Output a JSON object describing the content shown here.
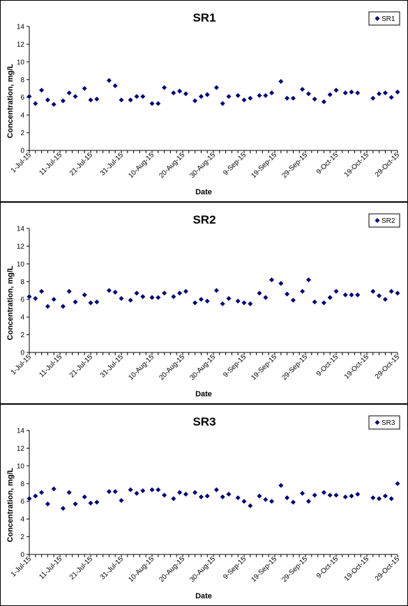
{
  "marker_color": "#00007f",
  "chart_data": [
    {
      "type": "scatter",
      "title": "SR1",
      "xlabel": "Date",
      "ylabel": "Concentration, mg/L",
      "ylim": [
        0,
        14
      ],
      "yticks": [
        "0",
        "2",
        "4",
        "6",
        "8",
        "10",
        "12",
        "14"
      ],
      "xticks": [
        "1-Jul-15",
        "11-Jul-15",
        "21-Jul-15",
        "31-Jul-15",
        "10-Aug-15",
        "20-Aug-15",
        "30-Aug-15",
        "9-Sep-15",
        "19-Sep-15",
        "29-Sep-15",
        "9-Oct-15",
        "19-Oct-15",
        "29-Oct-15"
      ],
      "xlim": [
        "2015-07-01",
        "2015-10-29"
      ],
      "grid": false,
      "legend_position": "top-right",
      "series": [
        {
          "name": "SR1",
          "color": "#00007f",
          "marker": "diamond",
          "points": [
            {
              "x": "2015-07-01",
              "y": 6.1
            },
            {
              "x": "2015-07-03",
              "y": 5.3
            },
            {
              "x": "2015-07-05",
              "y": 6.8
            },
            {
              "x": "2015-07-07",
              "y": 5.7
            },
            {
              "x": "2015-07-09",
              "y": 5.2
            },
            {
              "x": "2015-07-12",
              "y": 5.6
            },
            {
              "x": "2015-07-14",
              "y": 6.5
            },
            {
              "x": "2015-07-16",
              "y": 6.1
            },
            {
              "x": "2015-07-19",
              "y": 7.0
            },
            {
              "x": "2015-07-21",
              "y": 5.7
            },
            {
              "x": "2015-07-23",
              "y": 5.8
            },
            {
              "x": "2015-07-27",
              "y": 7.9
            },
            {
              "x": "2015-07-29",
              "y": 7.3
            },
            {
              "x": "2015-07-31",
              "y": 5.7
            },
            {
              "x": "2015-08-03",
              "y": 5.7
            },
            {
              "x": "2015-08-05",
              "y": 6.1
            },
            {
              "x": "2015-08-07",
              "y": 6.1
            },
            {
              "x": "2015-08-10",
              "y": 5.3
            },
            {
              "x": "2015-08-12",
              "y": 5.3
            },
            {
              "x": "2015-08-14",
              "y": 7.1
            },
            {
              "x": "2015-08-17",
              "y": 6.5
            },
            {
              "x": "2015-08-19",
              "y": 6.7
            },
            {
              "x": "2015-08-21",
              "y": 6.4
            },
            {
              "x": "2015-08-24",
              "y": 5.6
            },
            {
              "x": "2015-08-26",
              "y": 6.1
            },
            {
              "x": "2015-08-28",
              "y": 6.3
            },
            {
              "x": "2015-08-31",
              "y": 7.1
            },
            {
              "x": "2015-09-02",
              "y": 5.3
            },
            {
              "x": "2015-09-04",
              "y": 6.1
            },
            {
              "x": "2015-09-07",
              "y": 6.2
            },
            {
              "x": "2015-09-09",
              "y": 5.7
            },
            {
              "x": "2015-09-11",
              "y": 5.9
            },
            {
              "x": "2015-09-14",
              "y": 6.2
            },
            {
              "x": "2015-09-16",
              "y": 6.2
            },
            {
              "x": "2015-09-18",
              "y": 6.5
            },
            {
              "x": "2015-09-21",
              "y": 7.8
            },
            {
              "x": "2015-09-23",
              "y": 5.9
            },
            {
              "x": "2015-09-25",
              "y": 5.9
            },
            {
              "x": "2015-09-28",
              "y": 6.9
            },
            {
              "x": "2015-09-30",
              "y": 6.4
            },
            {
              "x": "2015-10-02",
              "y": 5.8
            },
            {
              "x": "2015-10-05",
              "y": 5.5
            },
            {
              "x": "2015-10-07",
              "y": 6.3
            },
            {
              "x": "2015-10-09",
              "y": 6.8
            },
            {
              "x": "2015-10-12",
              "y": 6.5
            },
            {
              "x": "2015-10-14",
              "y": 6.6
            },
            {
              "x": "2015-10-16",
              "y": 6.5
            },
            {
              "x": "2015-10-21",
              "y": 5.9
            },
            {
              "x": "2015-10-23",
              "y": 6.4
            },
            {
              "x": "2015-10-25",
              "y": 6.5
            },
            {
              "x": "2015-10-27",
              "y": 6.0
            },
            {
              "x": "2015-10-29",
              "y": 6.6
            }
          ]
        }
      ]
    },
    {
      "type": "scatter",
      "title": "SR2",
      "xlabel": "Date",
      "ylabel": "Concentration, mg/L",
      "ylim": [
        0,
        14
      ],
      "yticks": [
        "0",
        "2",
        "4",
        "6",
        "8",
        "10",
        "12",
        "14"
      ],
      "xticks": [
        "1-Jul-15",
        "11-Jul-15",
        "21-Jul-15",
        "31-Jul-15",
        "10-Aug-15",
        "20-Aug-15",
        "30-Aug-15",
        "9-Sep-15",
        "19-Sep-15",
        "29-Sep-15",
        "9-Oct-15",
        "19-Oct-15",
        "29-Oct-15"
      ],
      "xlim": [
        "2015-07-01",
        "2015-10-29"
      ],
      "grid": false,
      "legend_position": "top-right",
      "series": [
        {
          "name": "SR2",
          "color": "#00007f",
          "marker": "diamond",
          "points": [
            {
              "x": "2015-07-01",
              "y": 6.3
            },
            {
              "x": "2015-07-03",
              "y": 6.1
            },
            {
              "x": "2015-07-05",
              "y": 6.9
            },
            {
              "x": "2015-07-07",
              "y": 5.2
            },
            {
              "x": "2015-07-09",
              "y": 6.0
            },
            {
              "x": "2015-07-12",
              "y": 5.2
            },
            {
              "x": "2015-07-14",
              "y": 6.9
            },
            {
              "x": "2015-07-16",
              "y": 5.7
            },
            {
              "x": "2015-07-19",
              "y": 6.5
            },
            {
              "x": "2015-07-21",
              "y": 5.6
            },
            {
              "x": "2015-07-23",
              "y": 5.7
            },
            {
              "x": "2015-07-27",
              "y": 7.0
            },
            {
              "x": "2015-07-29",
              "y": 6.8
            },
            {
              "x": "2015-07-31",
              "y": 6.1
            },
            {
              "x": "2015-08-03",
              "y": 5.9
            },
            {
              "x": "2015-08-05",
              "y": 6.7
            },
            {
              "x": "2015-08-07",
              "y": 6.3
            },
            {
              "x": "2015-08-10",
              "y": 6.2
            },
            {
              "x": "2015-08-12",
              "y": 6.2
            },
            {
              "x": "2015-08-14",
              "y": 6.7
            },
            {
              "x": "2015-08-17",
              "y": 6.3
            },
            {
              "x": "2015-08-19",
              "y": 6.7
            },
            {
              "x": "2015-08-21",
              "y": 6.9
            },
            {
              "x": "2015-08-24",
              "y": 5.6
            },
            {
              "x": "2015-08-26",
              "y": 6.0
            },
            {
              "x": "2015-08-28",
              "y": 5.8
            },
            {
              "x": "2015-08-31",
              "y": 7.0
            },
            {
              "x": "2015-09-02",
              "y": 5.5
            },
            {
              "x": "2015-09-04",
              "y": 6.1
            },
            {
              "x": "2015-09-07",
              "y": 5.8
            },
            {
              "x": "2015-09-09",
              "y": 5.6
            },
            {
              "x": "2015-09-11",
              "y": 5.5
            },
            {
              "x": "2015-09-14",
              "y": 6.7
            },
            {
              "x": "2015-09-16",
              "y": 6.2
            },
            {
              "x": "2015-09-18",
              "y": 8.2
            },
            {
              "x": "2015-09-21",
              "y": 7.8
            },
            {
              "x": "2015-09-23",
              "y": 6.6
            },
            {
              "x": "2015-09-25",
              "y": 5.9
            },
            {
              "x": "2015-09-28",
              "y": 6.9
            },
            {
              "x": "2015-09-30",
              "y": 8.2
            },
            {
              "x": "2015-10-02",
              "y": 5.7
            },
            {
              "x": "2015-10-05",
              "y": 5.6
            },
            {
              "x": "2015-10-07",
              "y": 6.2
            },
            {
              "x": "2015-10-09",
              "y": 6.9
            },
            {
              "x": "2015-10-12",
              "y": 6.5
            },
            {
              "x": "2015-10-14",
              "y": 6.5
            },
            {
              "x": "2015-10-16",
              "y": 6.5
            },
            {
              "x": "2015-10-21",
              "y": 6.9
            },
            {
              "x": "2015-10-23",
              "y": 6.4
            },
            {
              "x": "2015-10-25",
              "y": 6.0
            },
            {
              "x": "2015-10-27",
              "y": 6.9
            },
            {
              "x": "2015-10-29",
              "y": 6.7
            }
          ]
        }
      ]
    },
    {
      "type": "scatter",
      "title": "SR3",
      "xlabel": "Date",
      "ylabel": "Concentration, mg/L",
      "ylim": [
        0,
        14
      ],
      "yticks": [
        "0",
        "2",
        "4",
        "6",
        "8",
        "10",
        "12",
        "14"
      ],
      "xticks": [
        "1-Jul-15",
        "11-Jul-15",
        "21-Jul-15",
        "31-Jul-15",
        "10-Aug-15",
        "20-Aug-15",
        "30-Aug-15",
        "9-Sep-15",
        "19-Sep-15",
        "29-Sep-15",
        "9-Oct-15",
        "19-Oct-15",
        "29-Oct-15"
      ],
      "xlim": [
        "2015-07-01",
        "2015-10-29"
      ],
      "grid": false,
      "legend_position": "top-right",
      "series": [
        {
          "name": "SR3",
          "color": "#00007f",
          "marker": "diamond",
          "points": [
            {
              "x": "2015-07-01",
              "y": 6.3
            },
            {
              "x": "2015-07-03",
              "y": 6.6
            },
            {
              "x": "2015-07-05",
              "y": 7.0
            },
            {
              "x": "2015-07-07",
              "y": 5.7
            },
            {
              "x": "2015-07-09",
              "y": 7.4
            },
            {
              "x": "2015-07-12",
              "y": 5.2
            },
            {
              "x": "2015-07-14",
              "y": 7.0
            },
            {
              "x": "2015-07-16",
              "y": 5.7
            },
            {
              "x": "2015-07-19",
              "y": 6.5
            },
            {
              "x": "2015-07-21",
              "y": 5.8
            },
            {
              "x": "2015-07-23",
              "y": 5.9
            },
            {
              "x": "2015-07-27",
              "y": 7.1
            },
            {
              "x": "2015-07-29",
              "y": 7.1
            },
            {
              "x": "2015-07-31",
              "y": 6.1
            },
            {
              "x": "2015-08-03",
              "y": 7.3
            },
            {
              "x": "2015-08-05",
              "y": 6.9
            },
            {
              "x": "2015-08-07",
              "y": 7.2
            },
            {
              "x": "2015-08-10",
              "y": 7.3
            },
            {
              "x": "2015-08-12",
              "y": 7.3
            },
            {
              "x": "2015-08-14",
              "y": 6.7
            },
            {
              "x": "2015-08-17",
              "y": 6.3
            },
            {
              "x": "2015-08-19",
              "y": 7.0
            },
            {
              "x": "2015-08-21",
              "y": 6.8
            },
            {
              "x": "2015-08-24",
              "y": 7.0
            },
            {
              "x": "2015-08-26",
              "y": 6.5
            },
            {
              "x": "2015-08-28",
              "y": 6.6
            },
            {
              "x": "2015-08-31",
              "y": 7.3
            },
            {
              "x": "2015-09-02",
              "y": 6.5
            },
            {
              "x": "2015-09-04",
              "y": 6.8
            },
            {
              "x": "2015-09-07",
              "y": 6.4
            },
            {
              "x": "2015-09-09",
              "y": 6.0
            },
            {
              "x": "2015-09-11",
              "y": 5.5
            },
            {
              "x": "2015-09-14",
              "y": 6.6
            },
            {
              "x": "2015-09-16",
              "y": 6.2
            },
            {
              "x": "2015-09-18",
              "y": 6.0
            },
            {
              "x": "2015-09-21",
              "y": 7.8
            },
            {
              "x": "2015-09-23",
              "y": 6.4
            },
            {
              "x": "2015-09-25",
              "y": 5.9
            },
            {
              "x": "2015-09-28",
              "y": 6.9
            },
            {
              "x": "2015-09-30",
              "y": 6.0
            },
            {
              "x": "2015-10-02",
              "y": 6.7
            },
            {
              "x": "2015-10-05",
              "y": 7.0
            },
            {
              "x": "2015-10-07",
              "y": 6.7
            },
            {
              "x": "2015-10-09",
              "y": 6.7
            },
            {
              "x": "2015-10-12",
              "y": 6.5
            },
            {
              "x": "2015-10-14",
              "y": 6.6
            },
            {
              "x": "2015-10-16",
              "y": 6.8
            },
            {
              "x": "2015-10-21",
              "y": 6.4
            },
            {
              "x": "2015-10-23",
              "y": 6.3
            },
            {
              "x": "2015-10-25",
              "y": 6.6
            },
            {
              "x": "2015-10-27",
              "y": 6.3
            },
            {
              "x": "2015-10-29",
              "y": 8.0
            }
          ]
        }
      ]
    }
  ]
}
